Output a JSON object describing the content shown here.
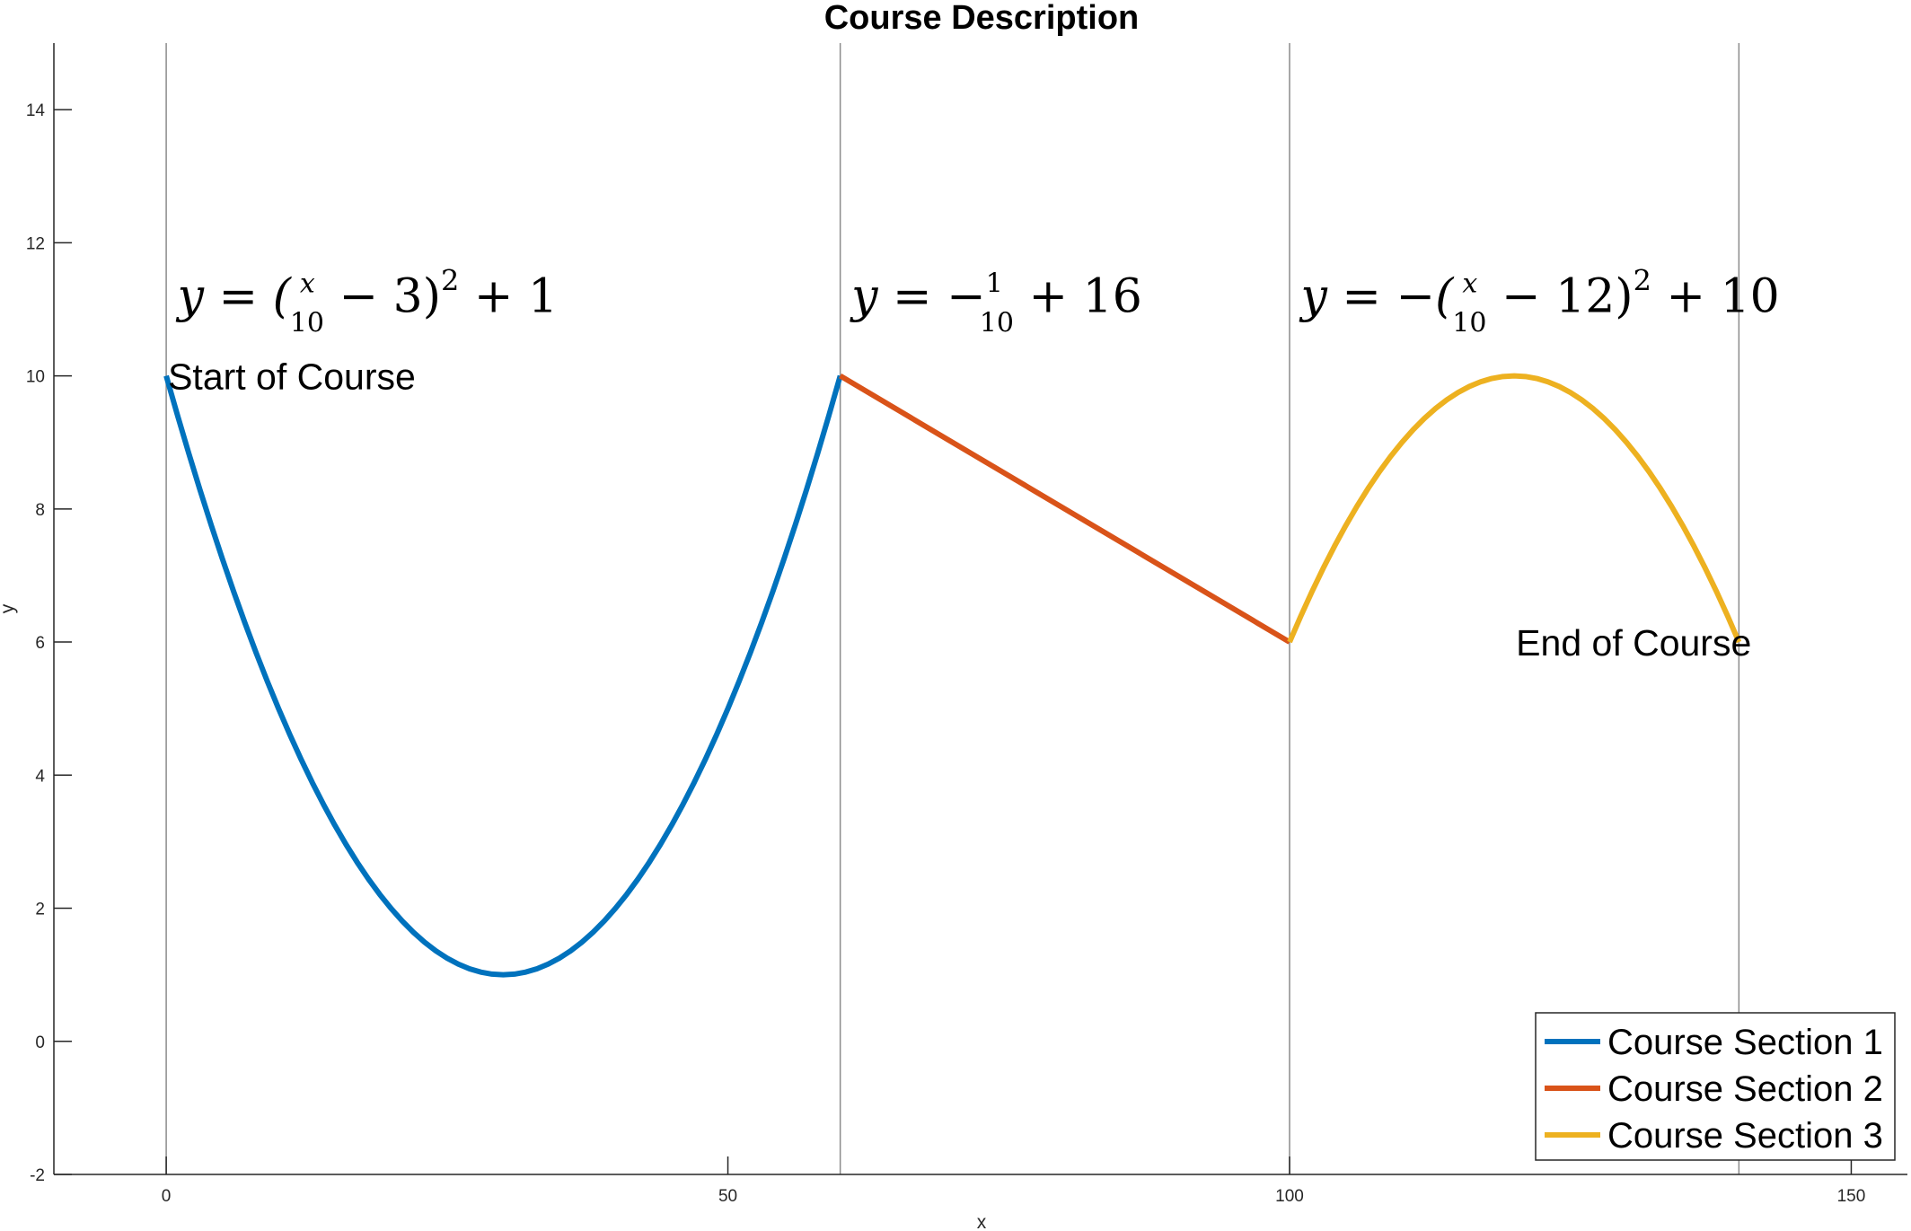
{
  "chart_data": {
    "type": "line",
    "title": "Course Description",
    "xlabel": "x",
    "ylabel": "y",
    "xlim": [
      -10,
      155
    ],
    "ylim": [
      -2,
      15
    ],
    "xticks": [
      0,
      50,
      100,
      150
    ],
    "yticks": [
      -2,
      0,
      2,
      4,
      6,
      8,
      10,
      12,
      14
    ],
    "grid": false,
    "vertical_lines_x": [
      0,
      60,
      100,
      140
    ],
    "legend_position": "bottom-right",
    "series": [
      {
        "name": "Course Section 1",
        "color": "#0072BD",
        "x": [
          0,
          5,
          10,
          15,
          20,
          25,
          30,
          35,
          40,
          45,
          50,
          55,
          60
        ],
        "y": [
          10,
          7.25,
          5,
          3.25,
          2,
          1.25,
          1,
          1.25,
          2,
          3.25,
          5,
          7.25,
          10
        ]
      },
      {
        "name": "Course Section 2",
        "color": "#D95319",
        "x": [
          60,
          100
        ],
        "y": [
          10,
          6
        ]
      },
      {
        "name": "Course Section 3",
        "color": "#EDB120",
        "x": [
          100,
          105,
          110,
          115,
          120,
          125,
          130,
          135,
          140
        ],
        "y": [
          6,
          7.75,
          9,
          9.75,
          10,
          9.75,
          9,
          7.75,
          6
        ]
      }
    ],
    "annotations": [
      {
        "text": "Start of Course",
        "x": 0,
        "y": 10
      },
      {
        "text": "End of Course",
        "x": 120,
        "y": 6
      }
    ],
    "equations": [
      {
        "name": "equation-section-1",
        "x": 1,
        "y": 11,
        "parts": [
          "y = (",
          "x",
          "10",
          " − 3)",
          "2",
          " + 1"
        ]
      },
      {
        "name": "equation-section-2",
        "x": 61,
        "y": 11,
        "parts": [
          "y = −",
          "1",
          "10",
          " + 16"
        ]
      },
      {
        "name": "equation-section-3",
        "x": 101,
        "y": 11,
        "parts": [
          "y = −(",
          "x",
          "10",
          " − 12)",
          "2",
          " + 10"
        ]
      }
    ]
  }
}
